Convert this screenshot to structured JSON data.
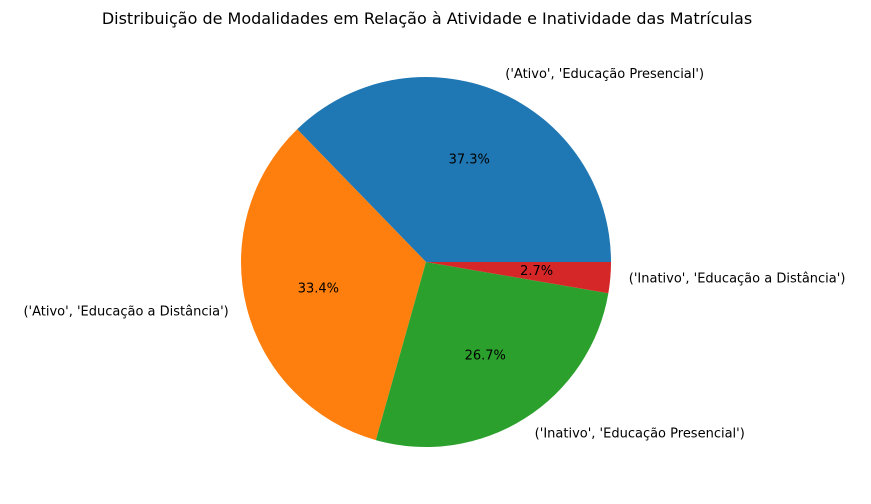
{
  "chart_data": {
    "type": "pie",
    "title": "Distribuição de Modalidades em Relação à Atividade e Inatividade das Matrículas",
    "slices": [
      {
        "label": "('Ativo', 'Educação Presencial')",
        "value": 37.3,
        "pct_label": "37.3%",
        "color": "#1f77b4"
      },
      {
        "label": "('Ativo', 'Educação a Distância')",
        "value": 33.4,
        "pct_label": "33.4%",
        "color": "#ff7f0e"
      },
      {
        "label": "('Inativo', 'Educação Presencial')",
        "value": 26.7,
        "pct_label": "26.7%",
        "color": "#2ca02c"
      },
      {
        "label": "('Inativo', 'Educação a Distância')",
        "value": 2.7,
        "pct_label": "2.7%",
        "color": "#d62728"
      }
    ],
    "start_angle_deg": 0,
    "direction": "counterclockwise",
    "legend": "none"
  }
}
